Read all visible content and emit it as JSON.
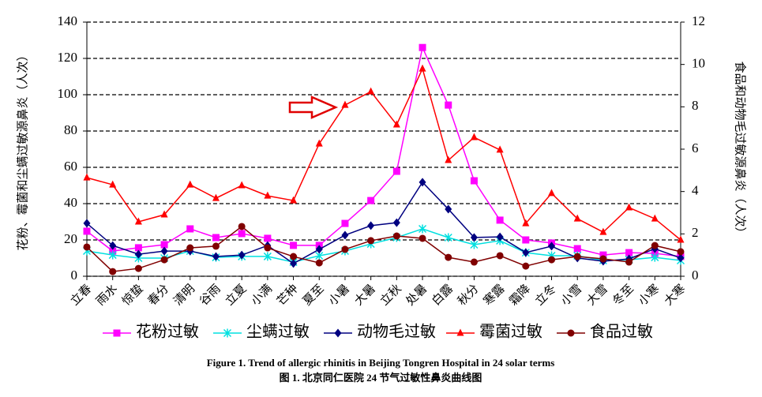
{
  "chart_data": {
    "type": "line",
    "categories": [
      "立春",
      "雨水",
      "惊蛰",
      "春分",
      "清明",
      "谷雨",
      "立夏",
      "小满",
      "芒种",
      "夏至",
      "小暑",
      "大暑",
      "立秋",
      "处暑",
      "白露",
      "秋分",
      "寒露",
      "霜降",
      "立冬",
      "小雪",
      "大雪",
      "冬至",
      "小寒",
      "大寒"
    ],
    "series": [
      {
        "name": "花粉过敏",
        "color": "#ff00ff",
        "marker": "square",
        "values": [
          24.8,
          13.9,
          15.7,
          17.4,
          26.1,
          21.3,
          23.5,
          20.9,
          17,
          17,
          29.1,
          41.7,
          57.8,
          126,
          94.3,
          52.6,
          30.9,
          20,
          18.3,
          15.2,
          11.7,
          13,
          12.6,
          10.9
        ]
      },
      {
        "name": "尘螨过敏",
        "color": "#00e0e0",
        "marker": "asterisk",
        "values": [
          13.9,
          11.7,
          10,
          10,
          13.9,
          10.4,
          10.9,
          10.9,
          7.8,
          11.3,
          13.9,
          17.8,
          21.3,
          26.1,
          21.3,
          17.4,
          19.6,
          13,
          11.3,
          11.3,
          8.7,
          9.1,
          10.4,
          8.7
        ]
      },
      {
        "name": "动物毛过敏",
        "color": "#000080",
        "marker": "diamond",
        "axis": "y2",
        "values": [
          2.5,
          1.45,
          1.04,
          1.19,
          1.19,
          0.93,
          1,
          1.45,
          0.6,
          1.27,
          1.94,
          2.39,
          2.53,
          4.44,
          3.17,
          1.83,
          1.86,
          1.12,
          1.42,
          0.86,
          0.71,
          0.82,
          1.3,
          0.86
        ]
      },
      {
        "name": "霉菌过敏",
        "color": "#ff0000",
        "marker": "triangle",
        "values": [
          54.3,
          50.4,
          30,
          33.9,
          50.4,
          43,
          50,
          44.3,
          41.7,
          73,
          94.3,
          101.7,
          83.5,
          114.3,
          63.9,
          76.5,
          69.6,
          29.1,
          45.7,
          31.7,
          24.3,
          37.8,
          31.7,
          20
        ]
      },
      {
        "name": "食品过敏",
        "color": "#800000",
        "marker": "circle",
        "axis": "y2",
        "values": [
          1.38,
          0.22,
          0.37,
          0.78,
          1.34,
          1.42,
          2.35,
          1.34,
          0.93,
          0.63,
          1.27,
          1.68,
          1.9,
          1.79,
          0.89,
          0.67,
          0.97,
          0.48,
          0.78,
          0.93,
          0.82,
          0.67,
          1.45,
          1.16
        ]
      }
    ],
    "ylabel": "花粉、霉菌和尘螨过敏源鼻炎（人次）",
    "y2label": "食品和动物毛过敏源鼻炎（人次）",
    "ylim": [
      0,
      140
    ],
    "yticks": [
      0,
      20,
      40,
      60,
      80,
      100,
      120,
      140
    ],
    "y2lim": [
      0,
      12
    ],
    "y2ticks": [
      0,
      2,
      4,
      6,
      8,
      10,
      12
    ],
    "grid": true,
    "legend": "bottom",
    "caption_en": "Figure 1. Trend of allergic rhinitis in Beijing Tongren Hospital in 24 solar terms",
    "caption_zh": "图 1. 北京同仁医院 24 节气过敏性鼻炎曲线图"
  }
}
